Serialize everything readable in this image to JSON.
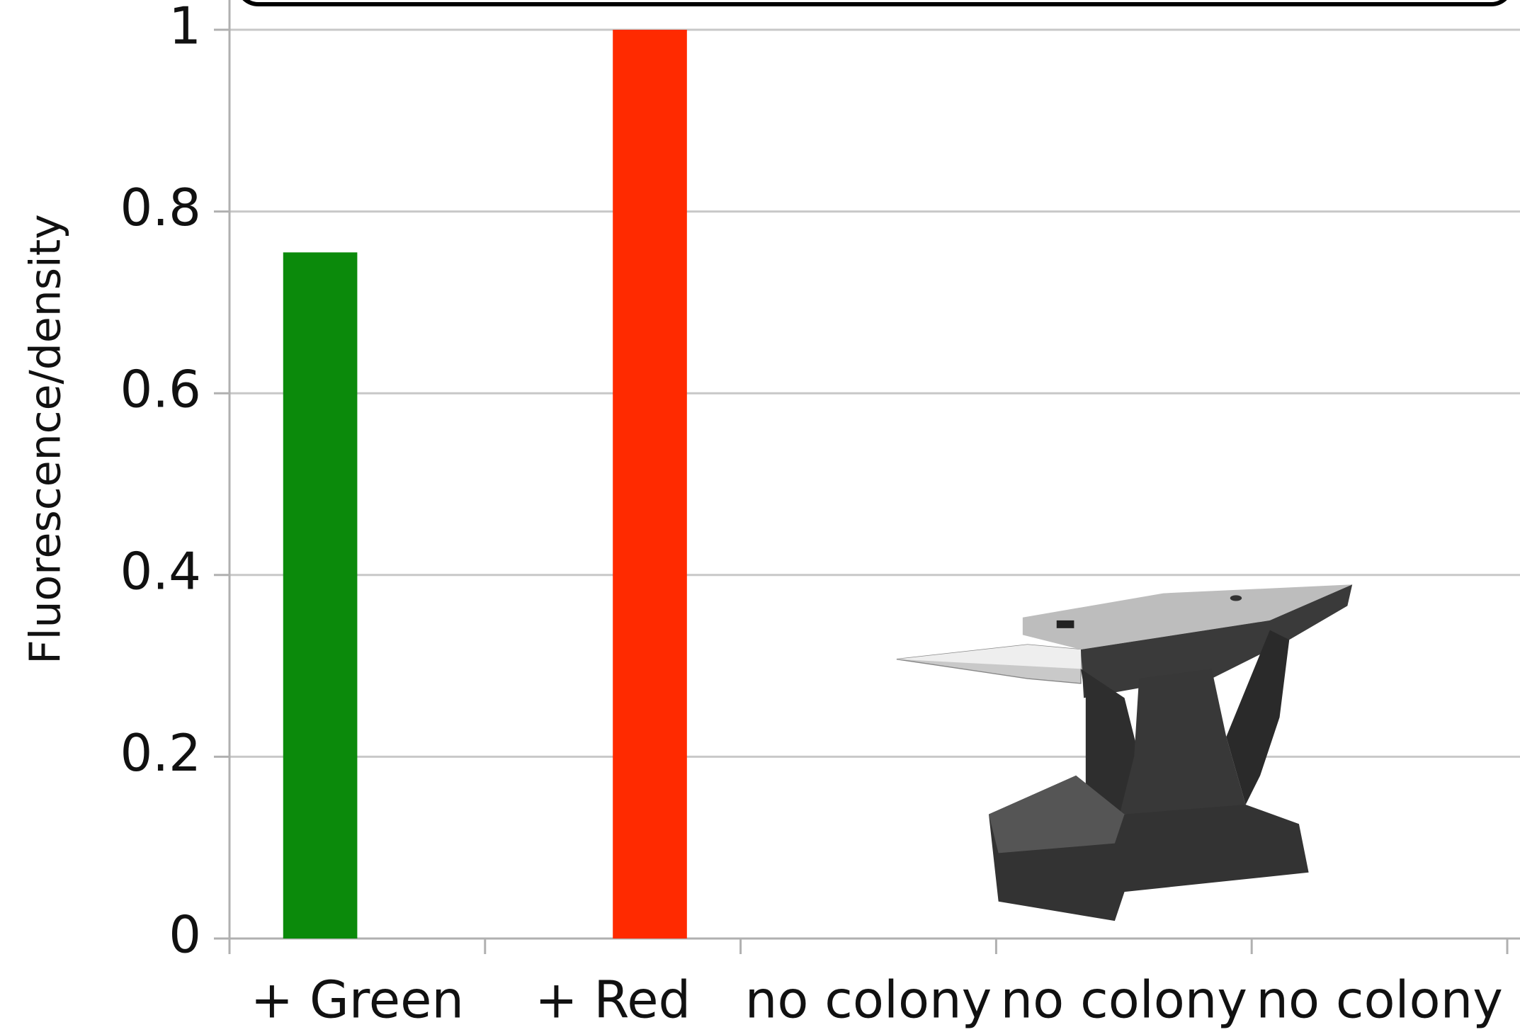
{
  "chart_data": {
    "type": "bar",
    "y_label": "Fluorescence/density",
    "categories": [
      "+ Green",
      "+ Red",
      "no colony",
      "no colony",
      "no colony"
    ],
    "series": [
      {
        "color": "#0b8a0b",
        "values": [
          0.755,
          null,
          null,
          null,
          null
        ]
      },
      {
        "color": "#ff2a00",
        "values": [
          null,
          1,
          null,
          null,
          null
        ]
      }
    ],
    "ylim": [
      0,
      1
    ],
    "yticks": [
      0,
      0.2,
      0.4,
      0.6,
      0.8,
      1
    ],
    "grid": true
  }
}
